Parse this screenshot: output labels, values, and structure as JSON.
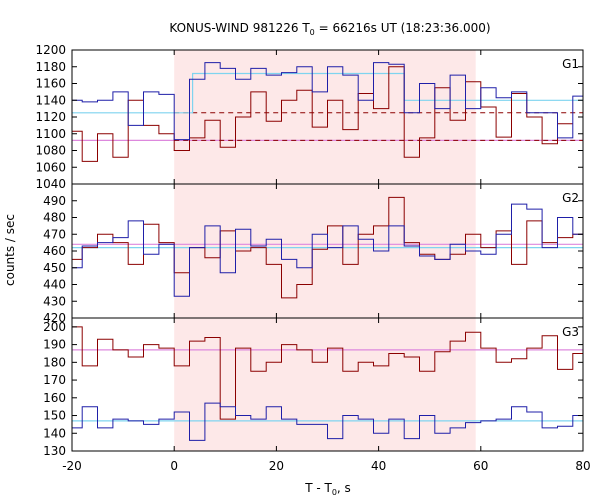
{
  "chart_data": {
    "type": "line",
    "title": "KONUS-WIND 981226 T",
    "title_sub": "0",
    "title_rest": " = 66216s UT (18:23:36.000)",
    "xlabel": "T - T",
    "xlabel_sub": "0",
    "xlabel_rest": ", s",
    "ylabel": "counts / sec",
    "xlim": [
      -20,
      80
    ],
    "xticks": [
      -20,
      0,
      20,
      40,
      60,
      80
    ],
    "xtick_labels": [
      "-20",
      "0",
      "20",
      "40",
      "60",
      "80"
    ],
    "highlight_interval": [
      0,
      59
    ],
    "colors": {
      "red": "#8b0000",
      "blue": "#1f1fa8",
      "lightblue": "#7fd4ef",
      "pink": "#dd88dd",
      "highlight": "#fde8e8"
    },
    "panels": [
      {
        "name": "G1",
        "ylim": [
          1040,
          1200
        ],
        "yticks": [
          1040,
          1060,
          1080,
          1100,
          1120,
          1140,
          1160,
          1180,
          1200
        ],
        "ytick_labels": [
          "1040",
          "1060",
          "1080",
          "1100",
          "1120",
          "1140",
          "1160",
          "1180",
          "1200"
        ],
        "bin_start": -21,
        "bin_width": 3,
        "red": [
          1103,
          1067,
          1100,
          1072,
          1140,
          1110,
          1100,
          1080,
          1095,
          1116,
          1084,
          1120,
          1150,
          1115,
          1140,
          1152,
          1108,
          1140,
          1105,
          1148,
          1130,
          1180,
          1072,
          1095,
          1155,
          1116,
          1162,
          1132,
          1096,
          1148,
          1120,
          1088,
          1112
        ],
        "blue": [
          1140,
          1138,
          1140,
          1150,
          1110,
          1150,
          1147,
          1093,
          1165,
          1185,
          1178,
          1165,
          1178,
          1170,
          1173,
          1180,
          1150,
          1180,
          1170,
          1140,
          1185,
          1183,
          1125,
          1160,
          1130,
          1170,
          1130,
          1155,
          1143,
          1150,
          1125,
          1125,
          1095,
          1145
        ],
        "blue_fit": {
          "x": [
            -21,
            3.6,
            3.6,
            45,
            45,
            80
          ],
          "y": [
            1125,
            1125,
            1172,
            1172,
            1140,
            1140
          ]
        },
        "red_fit": {
          "x": [
            -21,
            0,
            0,
            59,
            59,
            80
          ],
          "y": [
            1092,
            1092,
            1092,
            1092,
            1092,
            1092
          ]
        },
        "red_dash": {
          "x": [
            0,
            80
          ],
          "y": [
            1092,
            1092
          ]
        },
        "blue_dash": {
          "x": [
            0,
            80
          ],
          "y": [
            1125,
            1125
          ]
        },
        "pink_fit": {
          "x": [
            -21,
            80
          ],
          "y": [
            1092,
            1092
          ]
        }
      },
      {
        "name": "G2",
        "ylim": [
          420,
          500
        ],
        "yticks": [
          420,
          430,
          440,
          450,
          460,
          470,
          480,
          490
        ],
        "ytick_labels": [
          "420",
          "430",
          "440",
          "450",
          "460",
          "470",
          "480",
          "490"
        ],
        "bin_start": -21,
        "bin_width": 3,
        "red": [
          455,
          462,
          470,
          465,
          452,
          476,
          465,
          447,
          462,
          456,
          472,
          460,
          462,
          452,
          432,
          440,
          461,
          475,
          452,
          470,
          475,
          492,
          465,
          458,
          455,
          458,
          470,
          462,
          472,
          452,
          478,
          465,
          468,
          470,
          455,
          455,
          465
        ],
        "blue": [
          450,
          463,
          465,
          468,
          478,
          458,
          464,
          433,
          462,
          475,
          447,
          473,
          463,
          467,
          455,
          450,
          470,
          462,
          475,
          467,
          460,
          475,
          463,
          457,
          455,
          464,
          460,
          458,
          470,
          488,
          485,
          462,
          480,
          470,
          460,
          467
        ],
        "blue_fit": {
          "x": [
            -21,
            80
          ],
          "y": [
            462,
            462
          ]
        },
        "pink_fit": {
          "x": [
            -21,
            80
          ],
          "y": [
            464,
            464
          ]
        }
      },
      {
        "name": "G3",
        "ylim": [
          130,
          205
        ],
        "yticks": [
          130,
          140,
          150,
          160,
          170,
          180,
          190,
          200
        ],
        "ytick_labels": [
          "130",
          "140",
          "150",
          "160",
          "170",
          "180",
          "190",
          "200"
        ],
        "bin_start": -21,
        "bin_width": 3,
        "red": [
          200,
          178,
          193,
          187,
          183,
          190,
          188,
          178,
          192,
          194,
          148,
          188,
          175,
          180,
          190,
          187,
          180,
          188,
          175,
          180,
          178,
          185,
          183,
          175,
          186,
          192,
          197,
          188,
          180,
          182,
          188,
          195,
          176,
          185,
          180
        ],
        "blue": [
          143,
          155,
          143,
          148,
          147,
          145,
          148,
          152,
          136,
          157,
          155,
          150,
          148,
          155,
          148,
          145,
          145,
          137,
          150,
          148,
          140,
          148,
          137,
          150,
          140,
          143,
          146,
          147,
          148,
          155,
          152,
          143,
          144,
          150,
          147
        ],
        "blue_fit": {
          "x": [
            -21,
            80
          ],
          "y": [
            147,
            147
          ]
        },
        "pink_fit": {
          "x": [
            -21,
            80
          ],
          "y": [
            187,
            187
          ]
        }
      }
    ]
  }
}
